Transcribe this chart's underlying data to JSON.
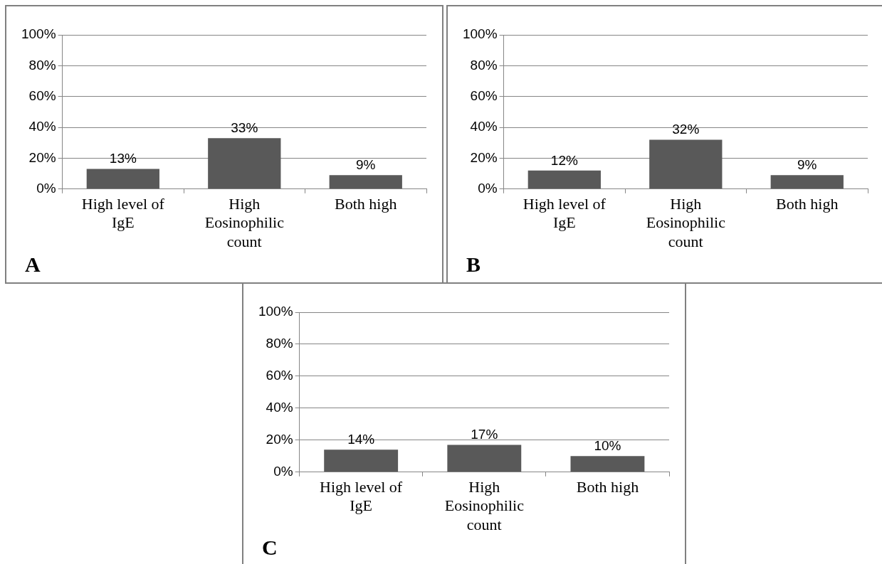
{
  "chart_data": [
    {
      "type": "bar",
      "categories": [
        "High level of IgE",
        "High Eosinophilic count",
        "Both high"
      ],
      "values": [
        13,
        33,
        9
      ],
      "value_labels": [
        "13%",
        "33%",
        "9%"
      ],
      "color": "#595959",
      "ylim": [
        0,
        100
      ],
      "yticks": [
        {
          "value": 0,
          "label": "0%"
        },
        {
          "value": 20,
          "label": "20%"
        },
        {
          "value": 40,
          "label": "40%"
        },
        {
          "value": 60,
          "label": "60%"
        },
        {
          "value": 80,
          "label": "80%"
        },
        {
          "value": 100,
          "label": "100%"
        }
      ],
      "grid": "y",
      "annotations": [
        "A"
      ]
    },
    {
      "type": "bar",
      "categories": [
        "High level of IgE",
        "High Eosinophilic count",
        "Both high"
      ],
      "values": [
        12,
        32,
        9
      ],
      "value_labels": [
        "12%",
        "32%",
        "9%"
      ],
      "color": "#595959",
      "ylim": [
        0,
        100
      ],
      "yticks": [
        {
          "value": 0,
          "label": "0%"
        },
        {
          "value": 20,
          "label": "20%"
        },
        {
          "value": 40,
          "label": "40%"
        },
        {
          "value": 60,
          "label": "60%"
        },
        {
          "value": 80,
          "label": "80%"
        },
        {
          "value": 100,
          "label": "100%"
        }
      ],
      "grid": "y",
      "annotations": [
        "B"
      ]
    },
    {
      "type": "bar",
      "categories": [
        "High level of IgE",
        "High Eosinophilic count",
        "Both high"
      ],
      "values": [
        14,
        17,
        10
      ],
      "value_labels": [
        "14%",
        "17%",
        "10%"
      ],
      "color": "#595959",
      "ylim": [
        0,
        100
      ],
      "yticks": [
        {
          "value": 0,
          "label": "0%"
        },
        {
          "value": 20,
          "label": "20%"
        },
        {
          "value": 40,
          "label": "40%"
        },
        {
          "value": 60,
          "label": "60%"
        },
        {
          "value": 80,
          "label": "80%"
        },
        {
          "value": 100,
          "label": "100%"
        }
      ],
      "grid": "y",
      "annotations": [
        "C"
      ]
    }
  ]
}
